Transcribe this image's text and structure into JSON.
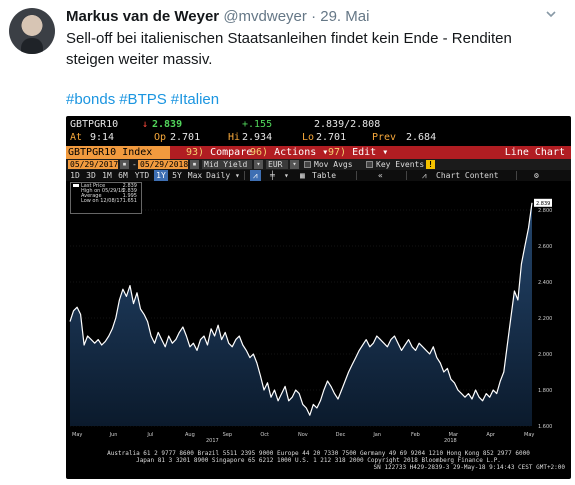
{
  "tweet": {
    "name": "Markus van de Weyer",
    "handle": "@mvdweyer",
    "separator": "·",
    "date": "29. Mai",
    "text": "Sell-off bei italienischen Staatsanleihen findet kein Ende - Renditen steigen weiter massiv.",
    "hashtags": [
      "#bonds",
      "#BTPS",
      "#Italien"
    ]
  },
  "terminal": {
    "ticker": "GBTPGR10",
    "last_arrow": "↓",
    "last": "2.839",
    "change": "+.155",
    "bid_ask": "2.839/2.808",
    "at_label": "At",
    "at_time": "9:14",
    "op_label": "Op",
    "op": "2.701",
    "hi_label": "Hi",
    "hi": "2.934",
    "lo_label": "Lo",
    "lo": "2.701",
    "prev_label": "Prev",
    "prev": "2.684",
    "command": "GBTPGR10 Index",
    "menu": [
      {
        "num": "93)",
        "label": "Compare"
      },
      {
        "num": "96)",
        "label": "Actions ▾"
      },
      {
        "num": "97)",
        "label": "Edit ▾"
      }
    ],
    "view_name": "Line Chart",
    "start_date": "05/29/2017",
    "end_date": "05/29/2018",
    "field": "Mid Yield",
    "currency": "EUR",
    "opt_mov_avgs": "Mov Avgs",
    "opt_key_events": "Key Events",
    "ranges": [
      "1D",
      "3D",
      "1M",
      "6M",
      "YTD",
      "1Y",
      "5Y",
      "Max"
    ],
    "active_range": "1Y",
    "frequency": "Daily ▾",
    "table_label": "Table",
    "chart_content_label": "Chart Content",
    "collapse_icon": "«",
    "settings_icon": "gear-icon"
  },
  "chart_data": {
    "type": "area",
    "ylim": [
      1.6,
      2.9
    ],
    "yticks": [
      "2.800",
      "2.600",
      "2.400",
      "2.200",
      "2.000",
      "1.800",
      "1.600"
    ],
    "ytick_values": [
      2.8,
      2.6,
      2.4,
      2.2,
      2.0,
      1.8,
      1.6
    ],
    "x_month_labels": [
      "May",
      "Jun",
      "Jul",
      "Aug",
      "Sep",
      "Oct",
      "Nov",
      "Dec",
      "Jan",
      "Feb",
      "Mar",
      "Apr",
      "May"
    ],
    "year_labels": [
      "2017",
      "2018"
    ],
    "current_value_label": "2.839",
    "legend": [
      {
        "label": "Last Price",
        "value": ""
      },
      {
        "label": "High on 05/29/18",
        "value": "2.839"
      },
      {
        "label": "Average",
        "value": "1.995"
      },
      {
        "label": "Low on 12/08/17",
        "value": "1.651"
      }
    ],
    "series": [
      {
        "name": "Last Price",
        "values": [
          2.18,
          2.24,
          2.26,
          2.22,
          2.05,
          2.1,
          2.08,
          2.06,
          2.08,
          2.05,
          2.07,
          2.1,
          2.14,
          2.2,
          2.3,
          2.36,
          2.32,
          2.38,
          2.28,
          2.34,
          2.25,
          2.22,
          2.18,
          2.1,
          2.06,
          2.12,
          2.08,
          2.04,
          2.1,
          2.06,
          2.08,
          2.12,
          2.15,
          2.1,
          2.04,
          2.06,
          2.02,
          2.08,
          2.1,
          2.05,
          2.14,
          2.1,
          2.16,
          2.08,
          2.12,
          2.06,
          2.04,
          2.08,
          2.1,
          2.05,
          2.02,
          1.98,
          2.0,
          1.95,
          1.88,
          1.8,
          1.84,
          1.76,
          1.8,
          1.74,
          1.78,
          1.82,
          1.74,
          1.76,
          1.8,
          1.78,
          1.72,
          1.7,
          1.66,
          1.72,
          1.7,
          1.74,
          1.8,
          1.85,
          1.82,
          1.78,
          1.75,
          1.8,
          1.85,
          1.9,
          1.94,
          1.98,
          2.02,
          2.05,
          2.08,
          2.04,
          2.06,
          2.1,
          2.08,
          2.06,
          2.04,
          2.08,
          2.1,
          2.06,
          2.02,
          2.05,
          2.08,
          2.04,
          2.02,
          2.06,
          2.04,
          2.02,
          2.0,
          2.04,
          1.98,
          1.95,
          1.9,
          1.92,
          1.86,
          1.84,
          1.8,
          1.78,
          1.76,
          1.78,
          1.75,
          1.8,
          1.76,
          1.74,
          1.78,
          1.76,
          1.8,
          1.78,
          1.85,
          1.9,
          2.05,
          2.2,
          2.35,
          2.3,
          2.5,
          2.6,
          2.7,
          2.84
        ]
      }
    ]
  },
  "footer": {
    "line1": "Australia 61 2 9777 8600 Brazil 5511 2395 9000 Europe 44 20 7330 7500 Germany 49 69 9204 1210 Hong Kong 852 2977 6000",
    "line2": "Japan 81 3 3201 8900      Singapore 65 6212 1000      U.S. 1 212 318 2000      Copyright 2018 Bloomberg Finance L.P.",
    "line3": "SN 122733 H429-2839-3 29-May-18  9:14:43 CEST GMT+2:00"
  },
  "colors": {
    "hashtag": "#1b95e0",
    "terminal_bg": "#000000",
    "orange": "#f7a83b",
    "red_bar": "#b11d22",
    "area_top": "#25476e",
    "area_bottom": "#0b1a2c"
  }
}
